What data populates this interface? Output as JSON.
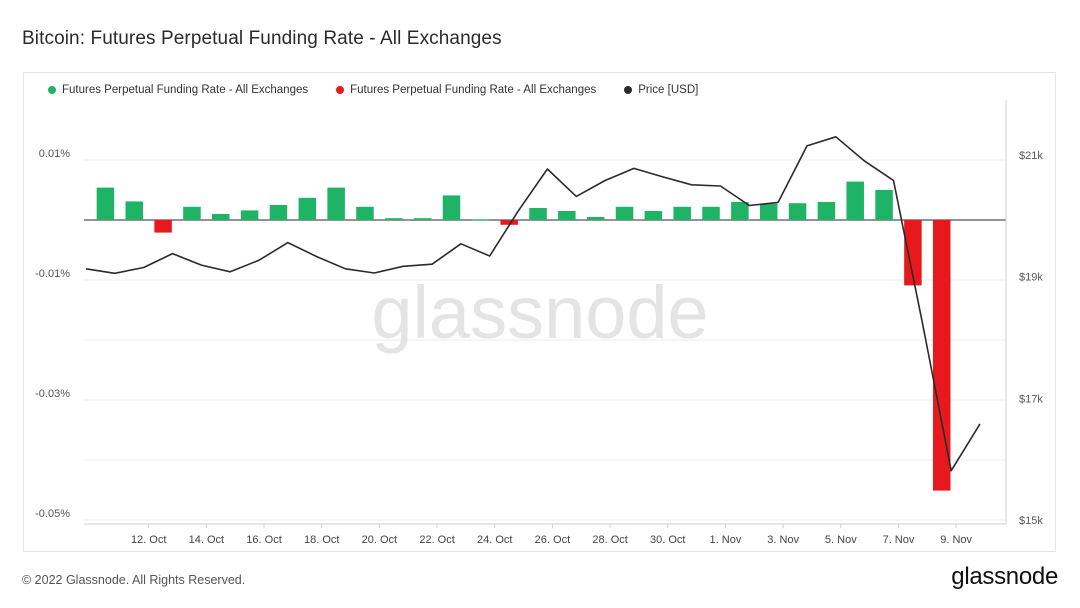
{
  "title": "Bitcoin: Futures Perpetual Funding Rate - All Exchanges",
  "footer": "© 2022 Glassnode. All Rights Reserved.",
  "logo": "glassnode",
  "watermark": "glassnode",
  "colors": {
    "positive": "#1fb365",
    "negative": "#e8191d",
    "price": "#2b2b2b"
  },
  "legend": [
    {
      "label": "Futures Perpetual Funding Rate - All Exchanges",
      "color": "#1fb365"
    },
    {
      "label": "Futures Perpetual Funding Rate - All Exchanges",
      "color": "#e8191d"
    },
    {
      "label": "Price [USD]",
      "color": "#2b2b2b"
    }
  ],
  "chart_data": {
    "type": "bar",
    "x": [
      "2022-10-10",
      "2022-10-11",
      "2022-10-12",
      "2022-10-13",
      "2022-10-14",
      "2022-10-15",
      "2022-10-16",
      "2022-10-17",
      "2022-10-18",
      "2022-10-19",
      "2022-10-20",
      "2022-10-21",
      "2022-10-22",
      "2022-10-23",
      "2022-10-24",
      "2022-10-25",
      "2022-10-26",
      "2022-10-27",
      "2022-10-28",
      "2022-10-29",
      "2022-10-30",
      "2022-10-31",
      "2022-11-01",
      "2022-11-02",
      "2022-11-03",
      "2022-11-04",
      "2022-11-05",
      "2022-11-06",
      "2022-11-07",
      "2022-11-08",
      "2022-11-09",
      "2022-11-10"
    ],
    "x_ticks": [
      "12. Oct",
      "14. Oct",
      "16. Oct",
      "18. Oct",
      "20. Oct",
      "22. Oct",
      "24. Oct",
      "26. Oct",
      "28. Oct",
      "30. Oct",
      "1. Nov",
      "3. Nov",
      "5. Nov",
      "7. Nov",
      "9. Nov"
    ],
    "x_tick_dates": [
      "2022-10-12",
      "2022-10-14",
      "2022-10-16",
      "2022-10-18",
      "2022-10-20",
      "2022-10-22",
      "2022-10-24",
      "2022-10-26",
      "2022-10-28",
      "2022-10-30",
      "2022-11-01",
      "2022-11-03",
      "2022-11-05",
      "2022-11-07",
      "2022-11-09"
    ],
    "series": [
      {
        "name": "Futures Perpetual Funding Rate - All Exchanges",
        "axis": "left",
        "kind": "bar",
        "unit": "%",
        "values": [
          0.0054,
          0.0031,
          -0.0021,
          0.0022,
          0.001,
          0.0016,
          0.0025,
          0.0037,
          0.0054,
          0.0022,
          0.0003,
          0.0003,
          0.0041,
          0.0001,
          -0.0008,
          0.002,
          0.0015,
          0.0005,
          0.0022,
          0.0015,
          0.0022,
          0.0022,
          0.003,
          0.0027,
          0.0028,
          0.003,
          0.0064,
          0.005,
          -0.0109,
          -0.0451,
          null,
          null
        ]
      },
      {
        "name": "Price [USD]",
        "axis": "right",
        "kind": "line",
        "values": [
          19130,
          19055,
          19150,
          19380,
          19190,
          19080,
          19270,
          19560,
          19330,
          19130,
          19060,
          19170,
          19205,
          19540,
          19340,
          20090,
          20770,
          20320,
          20580,
          20780,
          20640,
          20510,
          20490,
          20170,
          20220,
          21150,
          21300,
          20900,
          20580,
          18250,
          15810,
          16580
        ]
      }
    ],
    "left_axis": {
      "ticks": [
        0.01,
        -0.01,
        -0.03,
        -0.05
      ],
      "labels": [
        "0.01%",
        "-0.01%",
        "-0.03%",
        "-0.05%"
      ],
      "range": [
        -0.05,
        0.02
      ]
    },
    "right_axis": {
      "ticks": [
        21000,
        19000,
        17000,
        15000
      ],
      "labels": [
        "$21k",
        "$19k",
        "$17k",
        "$15k"
      ],
      "range": [
        15000,
        21000
      ]
    },
    "grid": true,
    "legend_position": "top-left"
  }
}
